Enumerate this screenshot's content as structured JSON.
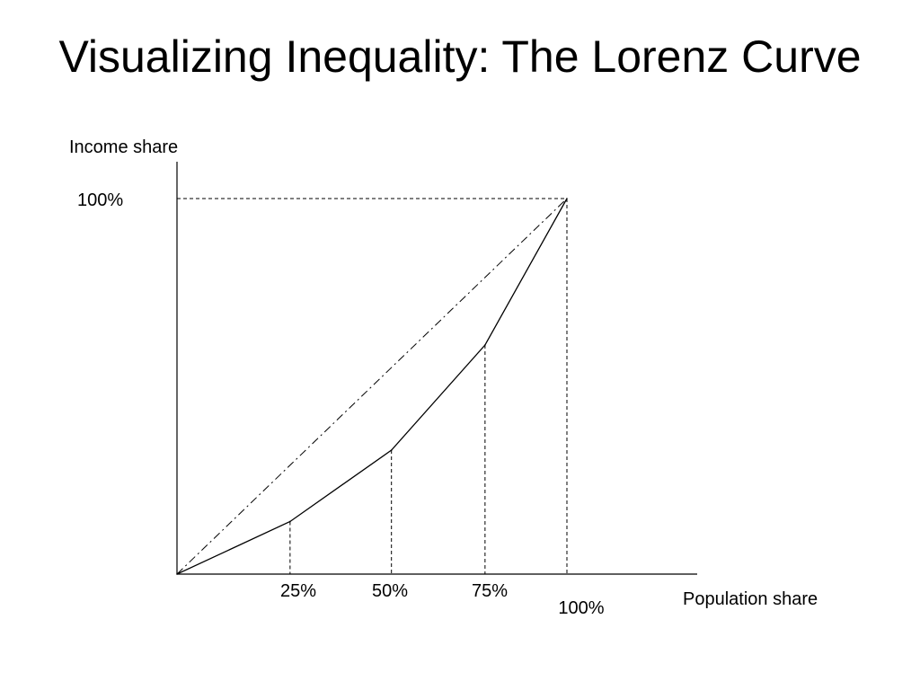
{
  "slide": {
    "title": "Visualizing Inequality: The Lorenz Curve"
  },
  "chart_data": {
    "type": "line",
    "title": "Visualizing Inequality: The Lorenz Curve",
    "xlabel": "Population share",
    "ylabel": "Income share",
    "xlim": [
      0,
      100
    ],
    "ylim": [
      0,
      100
    ],
    "x_ticks": [
      {
        "value": 25,
        "label": "25%"
      },
      {
        "value": 50,
        "label": "50%"
      },
      {
        "value": 75,
        "label": "75%"
      },
      {
        "value": 100,
        "label": "100%"
      }
    ],
    "y_ticks": [
      {
        "value": 100,
        "label": "100%"
      }
    ],
    "grid": false,
    "legend": "none",
    "series": [
      {
        "style": "dash-dot",
        "x": [
          0,
          100
        ],
        "y": [
          0,
          100
        ]
      },
      {
        "style": "solid",
        "x": [
          0,
          29,
          55,
          79,
          100
        ],
        "y": [
          0,
          14,
          33,
          61,
          100
        ]
      }
    ],
    "colors": {
      "line": "#000000"
    }
  }
}
